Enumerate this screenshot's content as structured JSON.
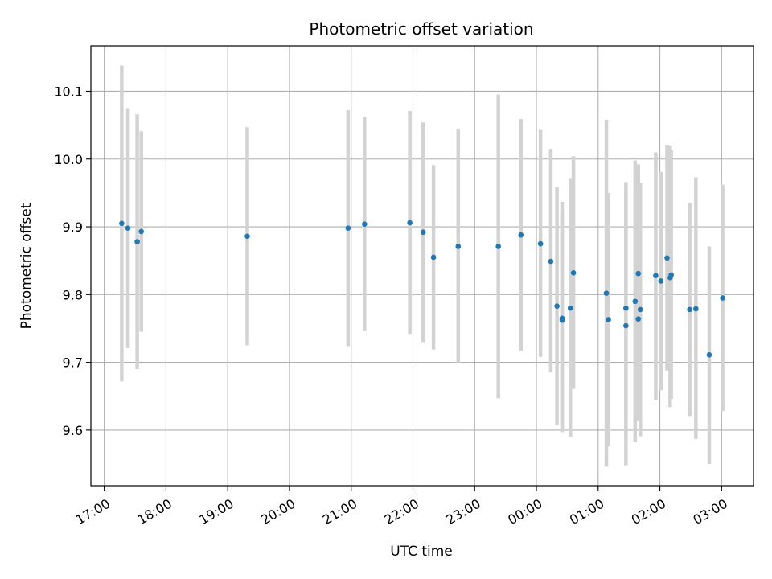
{
  "chart_data": {
    "type": "scatter",
    "title": "Photometric offset variation",
    "xlabel": "UTC time",
    "ylabel": "Photometric offset",
    "x_tick_labels": [
      "17:00",
      "18:00",
      "19:00",
      "20:00",
      "21:00",
      "22:00",
      "23:00",
      "00:00",
      "01:00",
      "02:00",
      "03:00"
    ],
    "y_tick_labels": [
      "9.6",
      "9.7",
      "9.8",
      "9.9",
      "10.0",
      "10.1"
    ],
    "y_ticks": [
      9.6,
      9.7,
      9.8,
      9.9,
      10.0,
      10.1
    ],
    "xlim": [
      "16:47",
      "03:31"
    ],
    "ylim": [
      9.518,
      10.167
    ],
    "grid": true,
    "colors": {
      "points": "#1f77b4",
      "errorbars": "#d3d3d3",
      "grid": "#b0b0b0"
    },
    "points": [
      {
        "t": "17:17",
        "y": 9.905,
        "lo": 9.672,
        "hi": 10.138
      },
      {
        "t": "17:23",
        "y": 9.898,
        "lo": 9.721,
        "hi": 10.075
      },
      {
        "t": "17:32",
        "y": 9.878,
        "lo": 9.69,
        "hi": 10.066
      },
      {
        "t": "17:36",
        "y": 9.893,
        "lo": 9.745,
        "hi": 10.041
      },
      {
        "t": "19:19",
        "y": 9.886,
        "lo": 9.725,
        "hi": 10.047
      },
      {
        "t": "20:57",
        "y": 9.898,
        "lo": 9.724,
        "hi": 10.072
      },
      {
        "t": "21:13",
        "y": 9.904,
        "lo": 9.746,
        "hi": 10.062
      },
      {
        "t": "21:57",
        "y": 9.906,
        "lo": 9.742,
        "hi": 10.071
      },
      {
        "t": "22:10",
        "y": 9.892,
        "lo": 9.73,
        "hi": 10.054
      },
      {
        "t": "22:20",
        "y": 9.855,
        "lo": 9.719,
        "hi": 9.991
      },
      {
        "t": "22:44",
        "y": 9.871,
        "lo": 9.7,
        "hi": 10.045
      },
      {
        "t": "23:23",
        "y": 9.871,
        "lo": 9.647,
        "hi": 10.095
      },
      {
        "t": "23:45",
        "y": 9.888,
        "lo": 9.717,
        "hi": 10.059
      },
      {
        "t": "00:04",
        "y": 9.875,
        "lo": 9.708,
        "hi": 10.043
      },
      {
        "t": "00:14",
        "y": 9.849,
        "lo": 9.685,
        "hi": 10.015
      },
      {
        "t": "00:20",
        "y": 9.783,
        "lo": 9.607,
        "hi": 9.959
      },
      {
        "t": "00:25",
        "y": 9.765,
        "lo": 9.597,
        "hi": 9.937
      },
      {
        "t": "00:25",
        "y": 9.762,
        "lo": 9.6,
        "hi": 9.924
      },
      {
        "t": "00:33",
        "y": 9.78,
        "lo": 9.59,
        "hi": 9.972
      },
      {
        "t": "00:36",
        "y": 9.832,
        "lo": 9.661,
        "hi": 10.004
      },
      {
        "t": "01:08",
        "y": 9.802,
        "lo": 9.546,
        "hi": 10.058
      },
      {
        "t": "01:10",
        "y": 9.763,
        "lo": 9.576,
        "hi": 9.95
      },
      {
        "t": "01:27",
        "y": 9.78,
        "lo": 9.594,
        "hi": 9.966
      },
      {
        "t": "01:27",
        "y": 9.754,
        "lo": 9.548,
        "hi": 9.96
      },
      {
        "t": "01:36",
        "y": 9.79,
        "lo": 9.582,
        "hi": 9.998
      },
      {
        "t": "01:39",
        "y": 9.831,
        "lo": 9.67,
        "hi": 9.992
      },
      {
        "t": "01:39",
        "y": 9.764,
        "lo": 9.614,
        "hi": 9.914
      },
      {
        "t": "01:41",
        "y": 9.778,
        "lo": 9.591,
        "hi": 9.965
      },
      {
        "t": "01:56",
        "y": 9.828,
        "lo": 9.645,
        "hi": 10.01
      },
      {
        "t": "02:01",
        "y": 9.82,
        "lo": 9.659,
        "hi": 9.981
      },
      {
        "t": "02:07",
        "y": 9.854,
        "lo": 9.688,
        "hi": 10.021
      },
      {
        "t": "02:10",
        "y": 9.825,
        "lo": 9.634,
        "hi": 10.02
      },
      {
        "t": "02:11",
        "y": 9.829,
        "lo": 9.646,
        "hi": 10.013
      },
      {
        "t": "02:29",
        "y": 9.778,
        "lo": 9.621,
        "hi": 9.935
      },
      {
        "t": "02:35",
        "y": 9.779,
        "lo": 9.587,
        "hi": 9.973
      },
      {
        "t": "02:48",
        "y": 9.711,
        "lo": 9.55,
        "hi": 9.871
      },
      {
        "t": "03:01",
        "y": 9.795,
        "lo": 9.628,
        "hi": 9.962
      }
    ]
  }
}
